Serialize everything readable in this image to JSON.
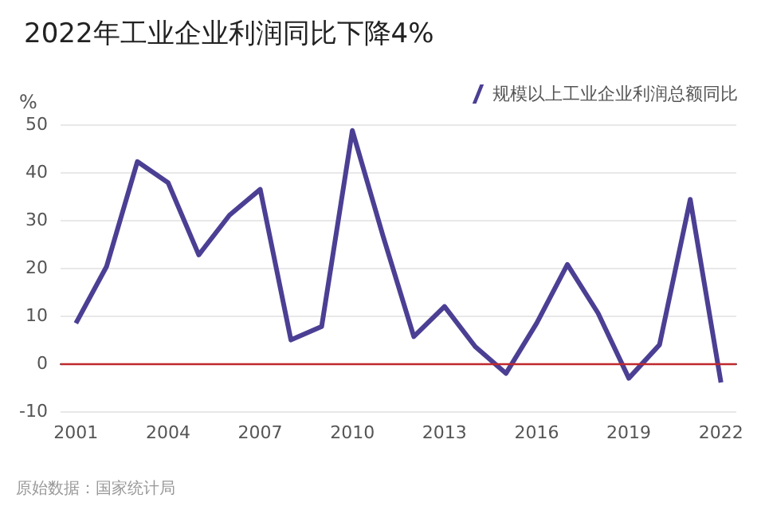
{
  "chart_data": {
    "type": "line",
    "title": "2022年工业企业利润同比下降4%",
    "ylabel": "%",
    "categories": [
      "2001",
      null,
      null,
      "2004",
      null,
      null,
      "2007",
      null,
      null,
      "2010",
      null,
      null,
      "2013",
      null,
      null,
      "2016",
      null,
      null,
      "2019",
      null,
      null,
      "2022"
    ],
    "series": [
      {
        "name": "规模以上工业企业利润总额同比",
        "color": "#4b3f94",
        "values": [
          8.4,
          20.3,
          42.2,
          37.8,
          22.7,
          31,
          36.4,
          4.9,
          7.7,
          48.7,
          26.6,
          5.6,
          11.9,
          3.5,
          -2.1,
          8.4,
          20.7,
          10.5,
          -3.1,
          3.9,
          34.3,
          -4
        ]
      }
    ],
    "ylim": [
      -10,
      50
    ],
    "yticks": [
      -10,
      0,
      10,
      20,
      30,
      40,
      50
    ],
    "grid": "y",
    "legend": "top right",
    "marker": "none",
    "line_style": "solid",
    "ref_lines": [
      {
        "axis": "y",
        "value": 0,
        "color": "#c0282d"
      }
    ],
    "annotations": [
      "原始数据：国家统计局"
    ]
  }
}
